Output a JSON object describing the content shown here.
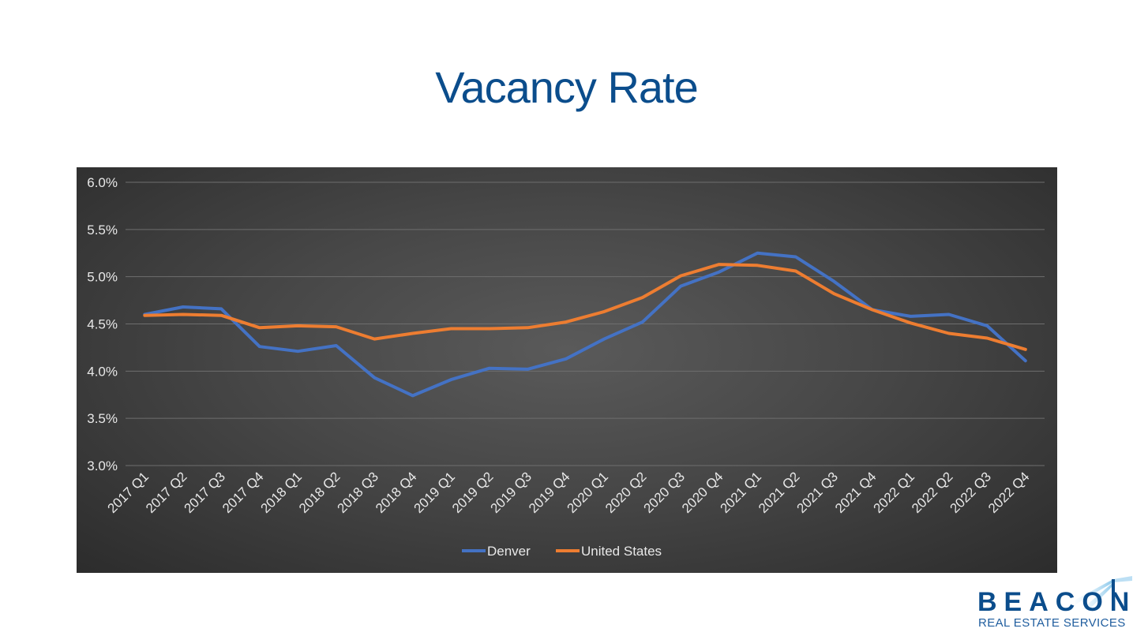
{
  "page": {
    "title": "Vacancy Rate"
  },
  "brand": {
    "name": "BEACON",
    "tagline": "REAL ESTATE SERVICES",
    "color": "#0b4d8c"
  },
  "chart_data": {
    "type": "line",
    "title": "",
    "xlabel": "",
    "ylabel": "",
    "ylim": [
      0.03,
      0.06
    ],
    "yticks": [
      "6.0%",
      "5.5%",
      "5.0%",
      "4.5%",
      "4.0%",
      "3.5%",
      "3.0%"
    ],
    "ytick_values": [
      0.06,
      0.055,
      0.05,
      0.045,
      0.04,
      0.035,
      0.03
    ],
    "grid": true,
    "legend_position": "bottom",
    "categories": [
      "2017 Q1",
      "2017 Q2",
      "2017 Q3",
      "2017 Q4",
      "2018 Q1",
      "2018 Q2",
      "2018 Q3",
      "2018 Q4",
      "2019 Q1",
      "2019 Q2",
      "2019 Q3",
      "2019 Q4",
      "2020 Q1",
      "2020 Q2",
      "2020 Q3",
      "2020 Q4",
      "2021 Q1",
      "2021 Q2",
      "2021 Q3",
      "2021 Q4",
      "2022 Q1",
      "2022 Q2",
      "2022 Q3",
      "2022 Q4"
    ],
    "series": [
      {
        "name": "Denver",
        "color": "#4472c4",
        "values": [
          0.046,
          0.0468,
          0.0466,
          0.0426,
          0.0421,
          0.0427,
          0.0393,
          0.0374,
          0.0391,
          0.0403,
          0.0402,
          0.0413,
          0.0434,
          0.0452,
          0.049,
          0.0505,
          0.0525,
          0.0521,
          0.0495,
          0.0465,
          0.0458,
          0.046,
          0.0448,
          0.0411
        ]
      },
      {
        "name": "United States",
        "color": "#ed7d31",
        "values": [
          0.0459,
          0.046,
          0.0459,
          0.0446,
          0.0448,
          0.0447,
          0.0434,
          0.044,
          0.0445,
          0.0445,
          0.0446,
          0.0452,
          0.0463,
          0.0478,
          0.0501,
          0.0513,
          0.0512,
          0.0506,
          0.0482,
          0.0465,
          0.0451,
          0.044,
          0.0435,
          0.0423
        ]
      }
    ]
  }
}
